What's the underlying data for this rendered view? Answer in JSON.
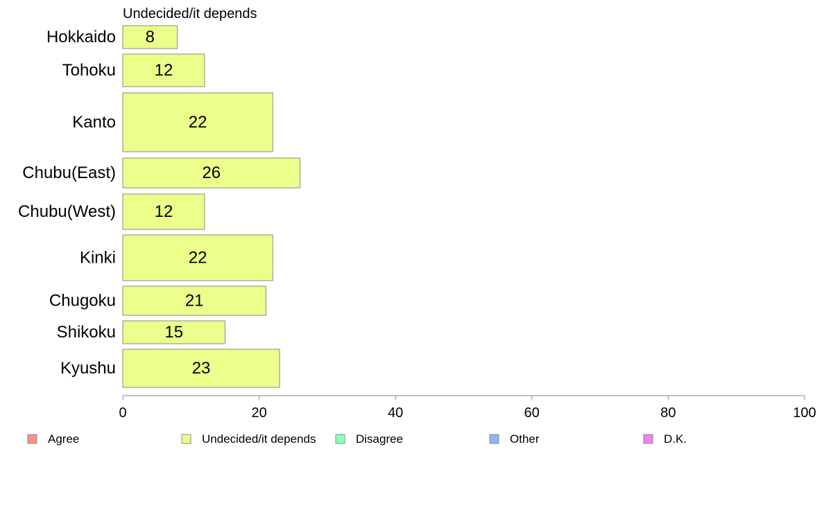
{
  "chart_data": {
    "type": "bar",
    "orientation": "horizontal",
    "title": "Undecided/it depends",
    "categories": [
      "Hokkaido",
      "Tohoku",
      "Kanto",
      "Chubu(East)",
      "Chubu(West)",
      "Kinki",
      "Chugoku",
      "Shikoku",
      "Kyushu"
    ],
    "series": [
      {
        "name": "Undecided/it depends",
        "values": [
          8,
          12,
          22,
          26,
          12,
          22,
          21,
          15,
          23
        ],
        "display_values": [
          "8",
          "12",
          "22",
          "26",
          "12",
          "22",
          "21",
          "15",
          "23"
        ],
        "color": "#ebff8a"
      }
    ],
    "xlim": [
      0,
      100
    ],
    "xticks": [
      0,
      20,
      40,
      60,
      80,
      100
    ],
    "xtick_labels": [
      "0",
      "20",
      "40",
      "60",
      "80",
      "100"
    ],
    "grid": false,
    "legend_position": "bottom",
    "legend": [
      {
        "label": "Agree",
        "color": "#f8918a"
      },
      {
        "label": "Undecided/it depends",
        "color": "#ebff8a"
      },
      {
        "label": "Disagree",
        "color": "#8affb8"
      },
      {
        "label": "Other",
        "color": "#8ab8f8"
      },
      {
        "label": "D.K.",
        "color": "#ee82ee"
      }
    ]
  }
}
